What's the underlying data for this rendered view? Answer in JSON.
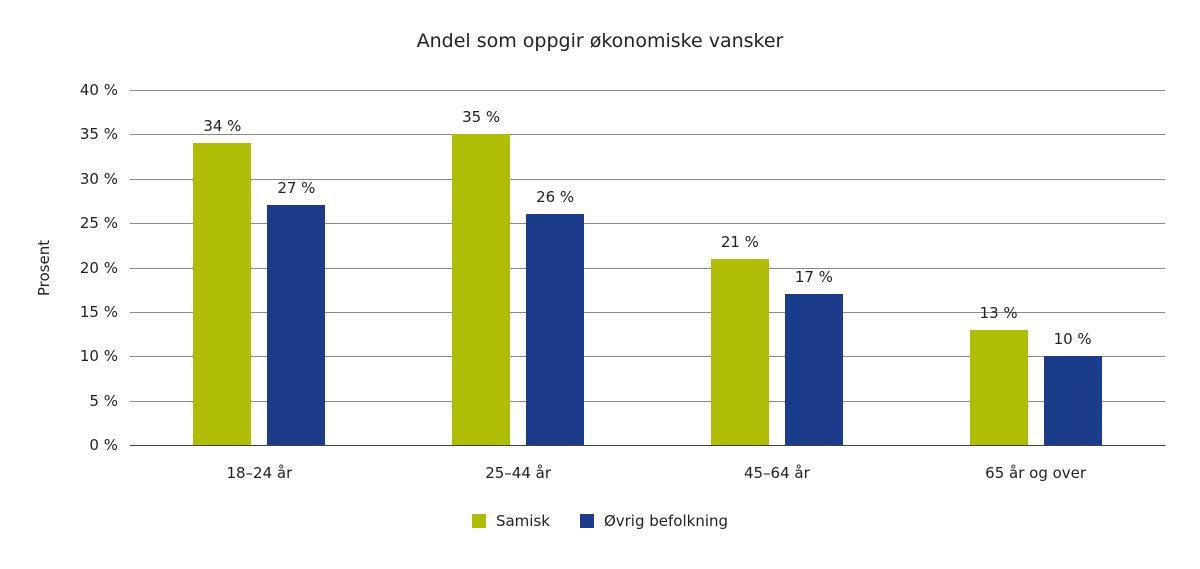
{
  "chart_data": {
    "type": "bar",
    "title": "Andel som oppgir økonomiske vansker",
    "xlabel": "",
    "ylabel": "Prosent",
    "ylim": [
      0,
      40
    ],
    "yticks": [
      "0 %",
      "5 %",
      "10 %",
      "15 %",
      "20 %",
      "25 %",
      "30 %",
      "35 %",
      "40 %"
    ],
    "grid": true,
    "legend_position": "bottom",
    "categories": [
      "18–24 år",
      "25–44 år",
      "45–64 år",
      "65 år og over"
    ],
    "series": [
      {
        "name": "Samisk",
        "color": "#afbd04",
        "values": [
          34,
          35,
          21,
          13
        ],
        "labels": [
          "34 %",
          "35 %",
          "21 %",
          "13 %"
        ]
      },
      {
        "name": "Øvrig befolkning",
        "color": "#1a3c8a",
        "values": [
          27,
          26,
          17,
          10
        ],
        "labels": [
          "27 %",
          "26 %",
          "17 %",
          "10 %"
        ]
      }
    ]
  }
}
